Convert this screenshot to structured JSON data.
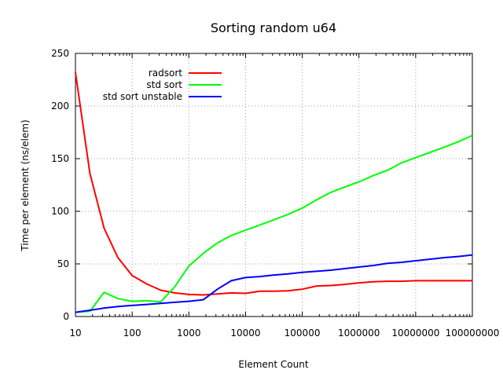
{
  "chart_data": {
    "type": "line",
    "title": "Sorting random u64",
    "xlabel": "Element Count",
    "ylabel": "Time per element (ns/elem)",
    "xscale": "log",
    "xlim": [
      10,
      100000000
    ],
    "ylim": [
      0,
      250
    ],
    "xticks": [
      "10",
      "100",
      "1000",
      "10000",
      "100000",
      "1000000",
      "10000000",
      "100000000"
    ],
    "yticks": [
      "0",
      "50",
      "100",
      "150",
      "200",
      "250"
    ],
    "grid": true,
    "legend_position": "top-left",
    "series": [
      {
        "name": "radsort",
        "color": "#ff0000",
        "x": [
          10,
          18,
          32,
          56,
          100,
          180,
          320,
          560,
          1000,
          1800,
          3200,
          5600,
          10000,
          18000,
          32000,
          56000,
          100000,
          180000,
          320000,
          560000,
          1000000,
          1800000,
          3200000,
          5600000,
          10000000,
          18000000,
          32000000,
          56000000,
          100000000
        ],
        "y": [
          232,
          136,
          84,
          56,
          39,
          31,
          25,
          22.5,
          21,
          20.5,
          21.5,
          22.5,
          22,
          24,
          24,
          24.5,
          26,
          29,
          29.5,
          30.5,
          32,
          33,
          33.5,
          33.5,
          34,
          34,
          34,
          34,
          34
        ]
      },
      {
        "name": "std sort",
        "color": "#00ff00",
        "x": [
          10,
          18,
          32,
          56,
          100,
          180,
          320,
          560,
          1000,
          1800,
          3200,
          5600,
          10000,
          18000,
          32000,
          56000,
          100000,
          180000,
          320000,
          560000,
          1000000,
          1800000,
          3200000,
          5600000,
          10000000,
          18000000,
          32000000,
          56000000,
          100000000
        ],
        "y": [
          4,
          5,
          23,
          17,
          14.5,
          15,
          14,
          28,
          48,
          60,
          70,
          77,
          82,
          87,
          92,
          97,
          103,
          111,
          118,
          123,
          128,
          134,
          139,
          146,
          151,
          156,
          161,
          166,
          172
        ]
      },
      {
        "name": "std sort unstable",
        "color": "#0000ff",
        "x": [
          10,
          18,
          32,
          56,
          100,
          180,
          320,
          560,
          1000,
          1800,
          3200,
          5600,
          10000,
          18000,
          32000,
          56000,
          100000,
          180000,
          320000,
          560000,
          1000000,
          1800000,
          3200000,
          5600000,
          10000000,
          18000000,
          32000000,
          56000000,
          100000000
        ],
        "y": [
          4,
          6,
          8,
          9.5,
          10.5,
          11.5,
          12.5,
          13.5,
          14.5,
          16,
          26,
          34,
          37,
          38,
          39.5,
          40.5,
          42,
          43,
          44,
          45.5,
          47,
          48.5,
          50.5,
          51.5,
          53,
          54.5,
          56,
          57,
          58.5
        ]
      }
    ]
  }
}
